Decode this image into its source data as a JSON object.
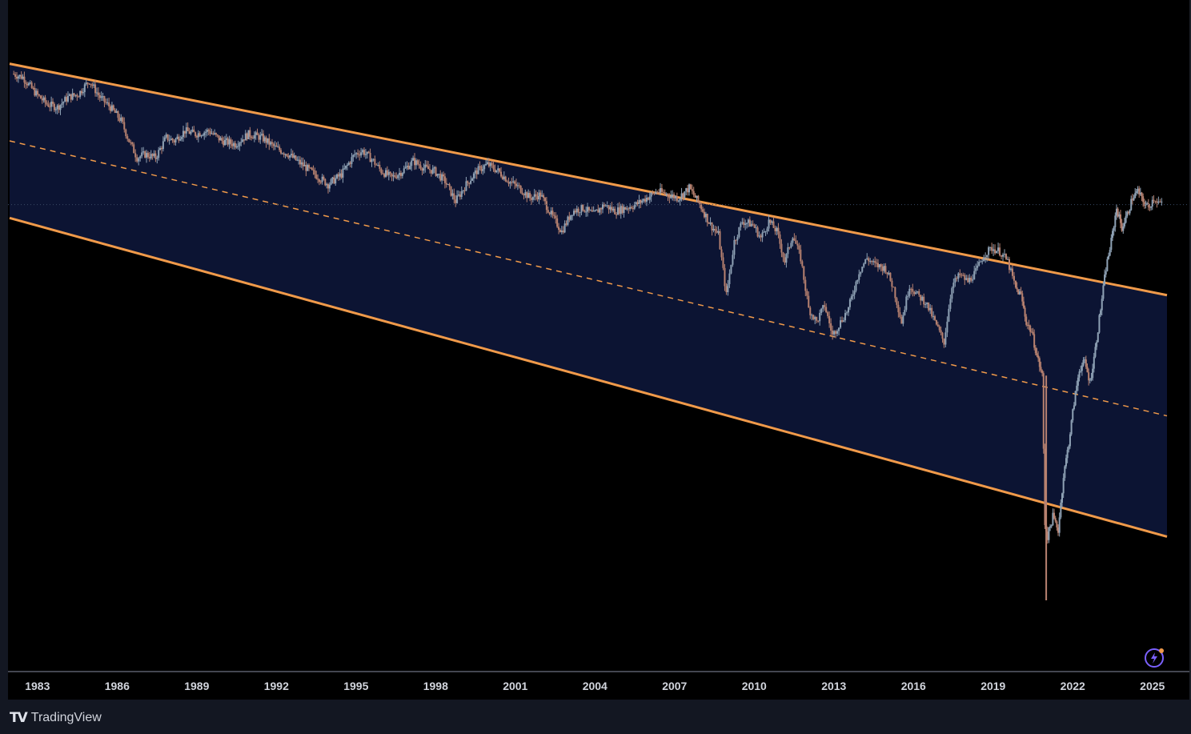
{
  "colors": {
    "background": "#000000",
    "channel_fill": "#0c1433",
    "channel_line": "#f09a4a",
    "candle_up": "#8fa2b5",
    "candle_down": "#b88270",
    "axis_text": "#d1d4dc",
    "price_line": "#3a4a66"
  },
  "icons": {
    "logo": "tradingview-logo-icon",
    "lightning": "lightning-icon"
  },
  "branding": {
    "mark": "𝗧𝗩",
    "name": "TradingView"
  },
  "chart_data": {
    "type": "line",
    "title": "",
    "xlabel": "",
    "ylabel": "",
    "grid": false,
    "x_ticks": [
      "1983",
      "1986",
      "1989",
      "1992",
      "1995",
      "1998",
      "2001",
      "2004",
      "2007",
      "2010",
      "2013",
      "2016",
      "2019",
      "2022",
      "2025"
    ],
    "xlim": [
      1982.0,
      2025.6
    ],
    "series": [
      {
        "style": "candles",
        "points": [
          [
            1982.1,
            0.89
          ],
          [
            1982.5,
            0.885
          ],
          [
            1983.0,
            0.86
          ],
          [
            1983.4,
            0.845
          ],
          [
            1983.8,
            0.84
          ],
          [
            1984.2,
            0.855
          ],
          [
            1984.6,
            0.86
          ],
          [
            1985.0,
            0.88
          ],
          [
            1985.4,
            0.855
          ],
          [
            1985.8,
            0.84
          ],
          [
            1986.2,
            0.82
          ],
          [
            1986.5,
            0.79
          ],
          [
            1986.8,
            0.765
          ],
          [
            1987.1,
            0.77
          ],
          [
            1987.5,
            0.765
          ],
          [
            1987.9,
            0.795
          ],
          [
            1988.2,
            0.79
          ],
          [
            1988.6,
            0.805
          ],
          [
            1989.0,
            0.8
          ],
          [
            1989.5,
            0.805
          ],
          [
            1990.0,
            0.79
          ],
          [
            1990.5,
            0.785
          ],
          [
            1991.0,
            0.8
          ],
          [
            1991.5,
            0.795
          ],
          [
            1992.0,
            0.78
          ],
          [
            1992.5,
            0.77
          ],
          [
            1993.0,
            0.755
          ],
          [
            1993.5,
            0.74
          ],
          [
            1994.0,
            0.725
          ],
          [
            1994.5,
            0.74
          ],
          [
            1995.0,
            0.77
          ],
          [
            1995.3,
            0.775
          ],
          [
            1995.7,
            0.76
          ],
          [
            1996.0,
            0.745
          ],
          [
            1996.4,
            0.735
          ],
          [
            1996.8,
            0.745
          ],
          [
            1997.2,
            0.76
          ],
          [
            1997.6,
            0.75
          ],
          [
            1998.0,
            0.745
          ],
          [
            1998.4,
            0.73
          ],
          [
            1998.8,
            0.7
          ],
          [
            1999.2,
            0.725
          ],
          [
            1999.6,
            0.745
          ],
          [
            2000.0,
            0.755
          ],
          [
            2000.4,
            0.745
          ],
          [
            2000.8,
            0.73
          ],
          [
            2001.2,
            0.72
          ],
          [
            2001.6,
            0.705
          ],
          [
            2002.0,
            0.71
          ],
          [
            2002.4,
            0.68
          ],
          [
            2002.8,
            0.655
          ],
          [
            2003.2,
            0.685
          ],
          [
            2003.6,
            0.69
          ],
          [
            2004.0,
            0.68
          ],
          [
            2004.4,
            0.695
          ],
          [
            2004.8,
            0.685
          ],
          [
            2005.2,
            0.69
          ],
          [
            2005.6,
            0.695
          ],
          [
            2006.0,
            0.705
          ],
          [
            2006.4,
            0.715
          ],
          [
            2006.8,
            0.71
          ],
          [
            2007.2,
            0.705
          ],
          [
            2007.6,
            0.72
          ],
          [
            2008.0,
            0.695
          ],
          [
            2008.4,
            0.665
          ],
          [
            2008.7,
            0.65
          ],
          [
            2009.0,
            0.56
          ],
          [
            2009.3,
            0.64
          ],
          [
            2009.6,
            0.67
          ],
          [
            2010.0,
            0.665
          ],
          [
            2010.3,
            0.645
          ],
          [
            2010.6,
            0.67
          ],
          [
            2010.9,
            0.655
          ],
          [
            2011.2,
            0.61
          ],
          [
            2011.5,
            0.65
          ],
          [
            2011.8,
            0.615
          ],
          [
            2012.1,
            0.54
          ],
          [
            2012.4,
            0.52
          ],
          [
            2012.7,
            0.545
          ],
          [
            2013.0,
            0.5
          ],
          [
            2013.3,
            0.52
          ],
          [
            2013.6,
            0.54
          ],
          [
            2014.0,
            0.595
          ],
          [
            2014.3,
            0.615
          ],
          [
            2014.6,
            0.605
          ],
          [
            2015.0,
            0.6
          ],
          [
            2015.3,
            0.57
          ],
          [
            2015.6,
            0.52
          ],
          [
            2015.9,
            0.575
          ],
          [
            2016.2,
            0.56
          ],
          [
            2016.5,
            0.55
          ],
          [
            2016.8,
            0.525
          ],
          [
            2017.2,
            0.49
          ],
          [
            2017.5,
            0.575
          ],
          [
            2017.8,
            0.59
          ],
          [
            2018.1,
            0.58
          ],
          [
            2018.4,
            0.595
          ],
          [
            2018.7,
            0.62
          ],
          [
            2019.0,
            0.63
          ],
          [
            2019.3,
            0.625
          ],
          [
            2019.6,
            0.61
          ],
          [
            2019.9,
            0.57
          ],
          [
            2020.1,
            0.56
          ],
          [
            2020.3,
            0.52
          ],
          [
            2020.5,
            0.505
          ],
          [
            2020.7,
            0.47
          ],
          [
            2020.9,
            0.44
          ],
          [
            2021.0,
            0.22
          ],
          [
            2021.1,
            0.2
          ],
          [
            2021.3,
            0.23
          ],
          [
            2021.5,
            0.21
          ],
          [
            2021.7,
            0.29
          ],
          [
            2021.9,
            0.34
          ],
          [
            2022.1,
            0.4
          ],
          [
            2022.3,
            0.45
          ],
          [
            2022.5,
            0.46
          ],
          [
            2022.7,
            0.43
          ],
          [
            2022.9,
            0.48
          ],
          [
            2023.1,
            0.54
          ],
          [
            2023.3,
            0.6
          ],
          [
            2023.5,
            0.64
          ],
          [
            2023.7,
            0.69
          ],
          [
            2023.9,
            0.66
          ],
          [
            2024.1,
            0.68
          ],
          [
            2024.3,
            0.705
          ],
          [
            2024.5,
            0.715
          ],
          [
            2024.7,
            0.7
          ],
          [
            2024.9,
            0.69
          ],
          [
            2025.1,
            0.705
          ],
          [
            2025.4,
            0.695
          ]
        ]
      },
      {
        "style": "channel-upper",
        "points": [
          [
            1982.0,
            0.905
          ],
          [
            2025.6,
            0.56
          ]
        ]
      },
      {
        "style": "channel-mid",
        "points": [
          [
            1982.0,
            0.79
          ],
          [
            2025.6,
            0.38
          ]
        ]
      },
      {
        "style": "channel-lower",
        "points": [
          [
            1982.0,
            0.675
          ],
          [
            2025.6,
            0.2
          ]
        ]
      }
    ]
  }
}
